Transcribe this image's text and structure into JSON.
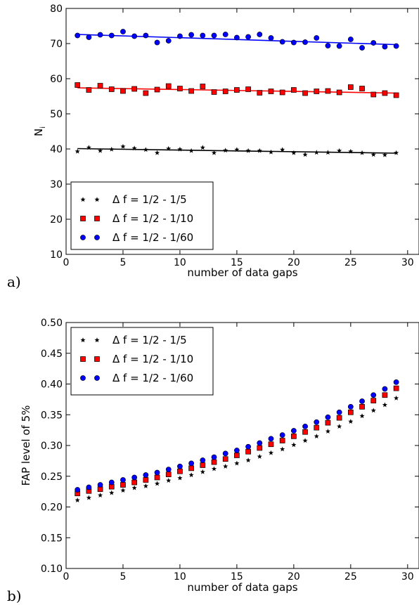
{
  "colors": {
    "s1": "#000000",
    "s2": "#ff0000",
    "s3": "#0000ff"
  },
  "panel_labels": [
    "a)",
    "b)"
  ],
  "chart_data": [
    {
      "type": "scatter",
      "panel": "a)",
      "title": "",
      "xlabel": "number of data gaps",
      "ylabel": "N",
      "ylabel_sub": "i",
      "xlim": [
        0,
        31
      ],
      "ylim": [
        10,
        80
      ],
      "xticks": [
        0,
        5,
        10,
        15,
        20,
        25,
        30
      ],
      "yticks": [
        10,
        20,
        30,
        40,
        50,
        60,
        70,
        80
      ],
      "legend_position": "bottom-left",
      "x": [
        1,
        2,
        3,
        4,
        5,
        6,
        7,
        8,
        9,
        10,
        11,
        12,
        13,
        14,
        15,
        16,
        17,
        18,
        19,
        20,
        21,
        22,
        23,
        24,
        25,
        26,
        27,
        28,
        29
      ],
      "series": [
        {
          "name": "Δ f = 1/2 - 1/5",
          "color": "#000000",
          "marker": "star",
          "values": [
            39.3,
            40.4,
            39.5,
            39.9,
            40.7,
            40.2,
            39.8,
            38.9,
            40.1,
            39.9,
            39.5,
            40.4,
            38.9,
            39.6,
            39.8,
            39.5,
            39.5,
            39.1,
            39.8,
            38.9,
            38.4,
            39.0,
            39.0,
            39.5,
            39.3,
            38.9,
            38.4,
            38.3,
            38.9
          ],
          "fit": [
            40.1,
            38.8
          ]
        },
        {
          "name": "Δ f = 1/2 - 1/10",
          "color": "#ff0000",
          "marker": "square",
          "values": [
            58.2,
            56.8,
            58.0,
            57.0,
            56.5,
            57.1,
            55.9,
            56.9,
            57.9,
            57.2,
            56.5,
            57.8,
            56.2,
            56.4,
            56.8,
            57.0,
            56.0,
            56.4,
            56.1,
            56.8,
            55.9,
            56.4,
            56.5,
            56.1,
            57.6,
            57.2,
            55.5,
            55.9,
            55.3
          ],
          "fit": [
            57.4,
            55.9
          ]
        },
        {
          "name": "Δ f = 1/2 - 1/60",
          "color": "#0000ff",
          "marker": "circle",
          "values": [
            72.3,
            71.8,
            72.5,
            72.3,
            73.4,
            72.1,
            72.3,
            70.3,
            70.8,
            72.1,
            72.5,
            72.3,
            72.3,
            72.6,
            71.7,
            71.9,
            72.6,
            71.6,
            70.5,
            70.3,
            70.4,
            71.6,
            69.4,
            69.3,
            71.2,
            68.8,
            70.2,
            69.1,
            69.3
          ],
          "fit": [
            72.6,
            69.7
          ]
        }
      ]
    },
    {
      "type": "scatter",
      "panel": "b)",
      "title": "",
      "xlabel": "number of data gaps",
      "ylabel": "FAP level of 5%",
      "xlim": [
        0,
        31
      ],
      "ylim": [
        0.1,
        0.5
      ],
      "xticks": [
        0,
        5,
        10,
        15,
        20,
        25,
        30
      ],
      "yticks": [
        0.1,
        0.15,
        0.2,
        0.25,
        0.3,
        0.35,
        0.4,
        0.45,
        0.5
      ],
      "legend_position": "top-left",
      "x": [
        1,
        2,
        3,
        4,
        5,
        6,
        7,
        8,
        9,
        10,
        11,
        12,
        13,
        14,
        15,
        16,
        17,
        18,
        19,
        20,
        21,
        22,
        23,
        24,
        25,
        26,
        27,
        28,
        29
      ],
      "series": [
        {
          "name": "Δ f = 1/2 - 1/5",
          "color": "#000000",
          "marker": "star",
          "values": [
            0.211,
            0.215,
            0.219,
            0.223,
            0.227,
            0.231,
            0.234,
            0.238,
            0.243,
            0.247,
            0.252,
            0.257,
            0.262,
            0.266,
            0.271,
            0.276,
            0.282,
            0.288,
            0.294,
            0.301,
            0.308,
            0.315,
            0.323,
            0.331,
            0.339,
            0.348,
            0.357,
            0.366,
            0.377
          ]
        },
        {
          "name": "Δ f = 1/2 - 1/10",
          "color": "#ff0000",
          "marker": "square",
          "values": [
            0.222,
            0.226,
            0.229,
            0.233,
            0.236,
            0.24,
            0.244,
            0.248,
            0.253,
            0.258,
            0.263,
            0.268,
            0.273,
            0.278,
            0.284,
            0.29,
            0.296,
            0.302,
            0.308,
            0.315,
            0.322,
            0.329,
            0.337,
            0.345,
            0.354,
            0.363,
            0.373,
            0.382,
            0.393
          ]
        },
        {
          "name": "Δ f = 1/2 - 1/60",
          "color": "#0000ff",
          "marker": "circle",
          "values": [
            0.228,
            0.232,
            0.236,
            0.24,
            0.244,
            0.248,
            0.252,
            0.256,
            0.261,
            0.266,
            0.271,
            0.276,
            0.281,
            0.287,
            0.292,
            0.298,
            0.304,
            0.311,
            0.317,
            0.324,
            0.331,
            0.338,
            0.346,
            0.354,
            0.363,
            0.372,
            0.382,
            0.392,
            0.403
          ]
        }
      ]
    }
  ]
}
